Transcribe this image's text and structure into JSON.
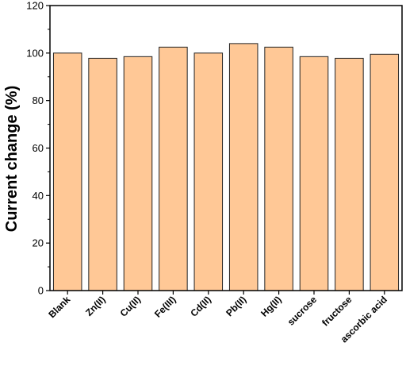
{
  "chart_data": {
    "type": "bar",
    "title": "",
    "xlabel": "",
    "ylabel": "Current change (%)",
    "ylim": [
      0,
      120
    ],
    "yticks": [
      0,
      20,
      40,
      60,
      80,
      100,
      120
    ],
    "grid": false,
    "categories": [
      "Blank",
      "Zn(II)",
      "Cu(II)",
      "Fe(III)",
      "Cd(II)",
      "Pb(II)",
      "Hg(II)",
      "sucrose",
      "fructose",
      "ascorbic acid"
    ],
    "values": [
      100,
      97.8,
      98.5,
      102.5,
      100,
      104,
      102.5,
      98.5,
      97.8,
      99.5
    ],
    "colors": {
      "bar_fill": "#FFC896",
      "bar_stroke": "#222222",
      "axis": "#000000"
    }
  }
}
